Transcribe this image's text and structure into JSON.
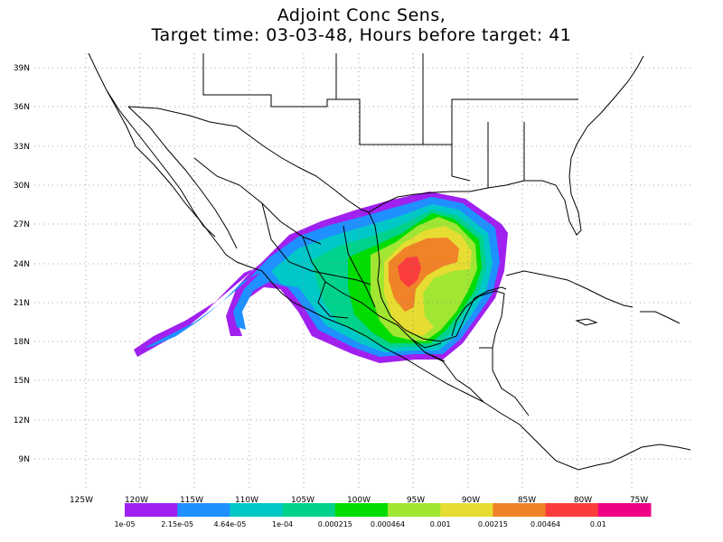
{
  "title": {
    "line1": "Adjoint Conc Sens,",
    "line2": "Target time: 03-03-48, Hours before target: 41"
  },
  "map": {
    "lon_range": [
      -130,
      -70
    ],
    "lat_range": [
      7,
      40
    ],
    "lat_ticks": [
      "9N",
      "12N",
      "15N",
      "18N",
      "21N",
      "24N",
      "27N",
      "30N",
      "33N",
      "36N",
      "39N"
    ],
    "lon_ticks": [
      "125W",
      "120W",
      "115W",
      "110W",
      "105W",
      "100W",
      "95W",
      "90W",
      "85W",
      "80W",
      "75W"
    ],
    "grid": "dotted"
  },
  "colorbar": {
    "colors": [
      "#a020f0",
      "#1e90ff",
      "#00c8c8",
      "#00d28c",
      "#00dc00",
      "#a0e632",
      "#e6dc32",
      "#f08228",
      "#fa3c3c",
      "#f00082"
    ],
    "labels": [
      "1e-05",
      "2.15e-05",
      "4.64e-05",
      "1e-04",
      "0.000215",
      "0.000464",
      "0.001",
      "0.00215",
      "0.00464",
      "0.01"
    ]
  }
}
